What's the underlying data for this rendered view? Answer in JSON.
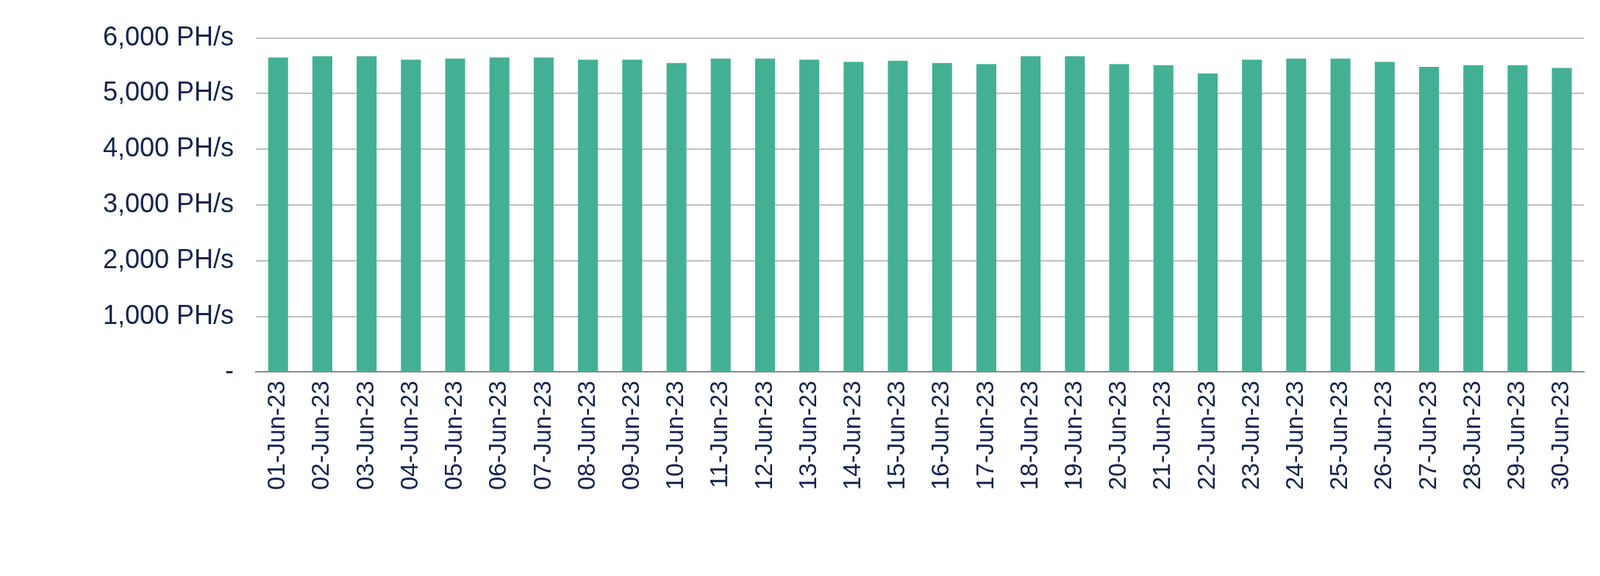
{
  "chart_data": {
    "type": "bar",
    "categories": [
      "01-Jun-23",
      "02-Jun-23",
      "03-Jun-23",
      "04-Jun-23",
      "05-Jun-23",
      "06-Jun-23",
      "07-Jun-23",
      "08-Jun-23",
      "09-Jun-23",
      "10-Jun-23",
      "11-Jun-23",
      "12-Jun-23",
      "13-Jun-23",
      "14-Jun-23",
      "15-Jun-23",
      "16-Jun-23",
      "17-Jun-23",
      "18-Jun-23",
      "19-Jun-23",
      "20-Jun-23",
      "21-Jun-23",
      "22-Jun-23",
      "23-Jun-23",
      "24-Jun-23",
      "25-Jun-23",
      "26-Jun-23",
      "27-Jun-23",
      "28-Jun-23",
      "29-Jun-23",
      "30-Jun-23"
    ],
    "values": [
      5650,
      5670,
      5670,
      5610,
      5630,
      5650,
      5650,
      5610,
      5610,
      5550,
      5630,
      5630,
      5610,
      5570,
      5590,
      5550,
      5530,
      5670,
      5670,
      5530,
      5510,
      5360,
      5610,
      5630,
      5630,
      5570,
      5480,
      5510,
      5510,
      5460
    ],
    "color": "#43b093",
    "ylim": [
      0,
      6000
    ],
    "yticks": [
      {
        "value": 0,
        "label": "-"
      },
      {
        "value": 1000,
        "label": "1,000 PH/s"
      },
      {
        "value": 2000,
        "label": "2,000 PH/s"
      },
      {
        "value": 3000,
        "label": "3,000 PH/s"
      },
      {
        "value": 4000,
        "label": "4,000 PH/s"
      },
      {
        "value": 5000,
        "label": "5,000 PH/s"
      },
      {
        "value": 6000,
        "label": "6,000 PH/s"
      }
    ],
    "grid": true
  }
}
